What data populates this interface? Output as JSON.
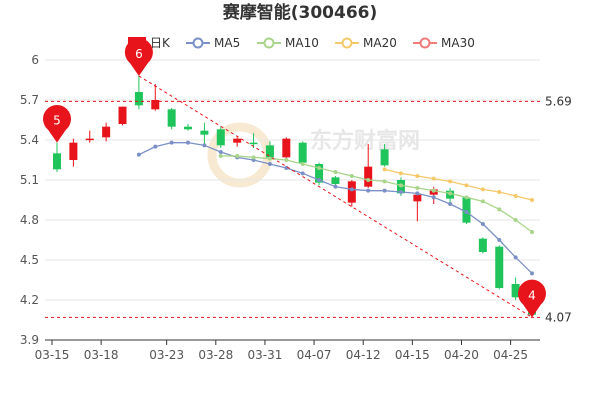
{
  "chart_data": {
    "type": "candlestick",
    "title": "赛摩智能(300466)",
    "legend": [
      {
        "name": "日K",
        "color": "#e8141b",
        "icon": "candle-icon"
      },
      {
        "name": "MA5",
        "color": "#7b90c6",
        "icon": "line-circle-icon"
      },
      {
        "name": "MA10",
        "color": "#a8d58a",
        "icon": "line-circle-icon"
      },
      {
        "name": "MA20",
        "color": "#f5c96a",
        "icon": "line-circle-icon"
      },
      {
        "name": "MA30",
        "color": "#ef7b7b",
        "icon": "line-circle-icon"
      }
    ],
    "legend_position": "top",
    "y_ticks": [
      "6",
      "5.7",
      "5.4",
      "5.1",
      "4.8",
      "4.5",
      "4.2",
      "3.9"
    ],
    "ylim": [
      3.9,
      6.0
    ],
    "x_ticks": [
      {
        "label": "03-15",
        "index": 0
      },
      {
        "label": "03-18",
        "index": 3
      },
      {
        "label": "03-23",
        "index": 7
      },
      {
        "label": "03-28",
        "index": 10
      },
      {
        "label": "03-31",
        "index": 13
      },
      {
        "label": "04-07",
        "index": 16
      },
      {
        "label": "04-12",
        "index": 19
      },
      {
        "label": "04-15",
        "index": 22
      },
      {
        "label": "04-20",
        "index": 25
      },
      {
        "label": "04-25",
        "index": 28
      }
    ],
    "up_color": "#e8141b",
    "down_color": "#1fc45a",
    "candles": [
      {
        "o": 5.3,
        "c": 5.18,
        "h": 5.38,
        "l": 5.16
      },
      {
        "o": 5.25,
        "c": 5.38,
        "h": 5.41,
        "l": 5.2
      },
      {
        "o": 5.4,
        "c": 5.41,
        "h": 5.47,
        "l": 5.38
      },
      {
        "o": 5.42,
        "c": 5.5,
        "h": 5.53,
        "l": 5.39
      },
      {
        "o": 5.52,
        "c": 5.65,
        "h": 5.65,
        "l": 5.51
      },
      {
        "o": 5.76,
        "c": 5.66,
        "h": 5.88,
        "l": 5.63
      },
      {
        "o": 5.63,
        "c": 5.7,
        "h": 5.82,
        "l": 5.62
      },
      {
        "o": 5.63,
        "c": 5.5,
        "h": 5.64,
        "l": 5.48
      },
      {
        "o": 5.5,
        "c": 5.48,
        "h": 5.52,
        "l": 5.47
      },
      {
        "o": 5.47,
        "c": 5.44,
        "h": 5.53,
        "l": 5.36
      },
      {
        "o": 5.48,
        "c": 5.36,
        "h": 5.5,
        "l": 5.34
      },
      {
        "o": 5.38,
        "c": 5.41,
        "h": 5.42,
        "l": 5.35
      },
      {
        "o": 5.38,
        "c": 5.37,
        "h": 5.45,
        "l": 5.34
      },
      {
        "o": 5.36,
        "c": 5.27,
        "h": 5.39,
        "l": 5.26
      },
      {
        "o": 5.27,
        "c": 5.41,
        "h": 5.42,
        "l": 5.25
      },
      {
        "o": 5.38,
        "c": 5.23,
        "h": 5.39,
        "l": 5.22
      },
      {
        "o": 5.22,
        "c": 5.08,
        "h": 5.23,
        "l": 5.06
      },
      {
        "o": 5.12,
        "c": 5.07,
        "h": 5.13,
        "l": 5.05
      },
      {
        "o": 4.93,
        "c": 5.09,
        "h": 5.1,
        "l": 4.9
      },
      {
        "o": 5.05,
        "c": 5.2,
        "h": 5.37,
        "l": 5.04
      },
      {
        "o": 5.33,
        "c": 5.21,
        "h": 5.37,
        "l": 5.2
      },
      {
        "o": 5.1,
        "c": 5.0,
        "h": 5.12,
        "l": 4.98
      },
      {
        "o": 4.94,
        "c": 4.99,
        "h": 5.0,
        "l": 4.79
      },
      {
        "o": 4.99,
        "c": 5.03,
        "h": 5.05,
        "l": 4.92
      },
      {
        "o": 5.02,
        "c": 4.96,
        "h": 5.04,
        "l": 4.93
      },
      {
        "o": 4.97,
        "c": 4.78,
        "h": 4.98,
        "l": 4.77
      },
      {
        "o": 4.66,
        "c": 4.56,
        "h": 4.67,
        "l": 4.55
      },
      {
        "o": 4.6,
        "c": 4.29,
        "h": 4.61,
        "l": 4.28
      },
      {
        "o": 4.32,
        "c": 4.22,
        "h": 4.37,
        "l": 4.2
      },
      {
        "o": 4.15,
        "c": 4.09,
        "h": 4.16,
        "l": 4.07
      }
    ],
    "ma_series": [
      {
        "name": "MA5",
        "start_index": 5,
        "values": [
          5.29,
          5.35,
          5.38,
          5.38,
          5.36,
          5.31,
          5.27,
          5.25,
          5.22,
          5.19,
          5.15,
          5.1,
          5.05,
          5.03,
          5.02,
          5.02,
          5.01,
          5.0,
          4.97,
          4.92,
          4.86,
          4.77,
          4.65,
          4.52,
          4.4
        ]
      },
      {
        "name": "MA10",
        "start_index": 10,
        "values": [
          5.28,
          5.28,
          5.27,
          5.26,
          5.25,
          5.22,
          5.19,
          5.16,
          5.13,
          5.1,
          5.09,
          5.06,
          5.04,
          5.02,
          5.0,
          4.97,
          4.94,
          4.88,
          4.8,
          4.71
        ]
      },
      {
        "name": "MA20",
        "start_index": 20,
        "values": [
          5.18,
          5.15,
          5.13,
          5.11,
          5.09,
          5.06,
          5.03,
          5.01,
          4.98,
          4.95
        ]
      },
      {
        "name": "MA30",
        "start_index": 29,
        "values": []
      }
    ],
    "ref_lines": [
      {
        "value": 5.69,
        "label": "5.69",
        "color": "#e8141b"
      },
      {
        "value": 4.07,
        "label": "4.07",
        "color": "#e8141b"
      }
    ],
    "markers": [
      {
        "label": "6",
        "index": 5,
        "value": 5.88,
        "color": "#e8141b"
      },
      {
        "label": "5",
        "index": 0,
        "value": 5.38,
        "color": "#e8141b"
      },
      {
        "label": "4",
        "index": 29,
        "value": 4.07,
        "color": "#e8141b"
      }
    ],
    "trend_line": {
      "from": {
        "index": 5,
        "value": 5.88
      },
      "to": {
        "index": 29,
        "value": 4.07
      },
      "color": "#e8141b"
    },
    "watermark": "东方财富网",
    "grid": true
  }
}
